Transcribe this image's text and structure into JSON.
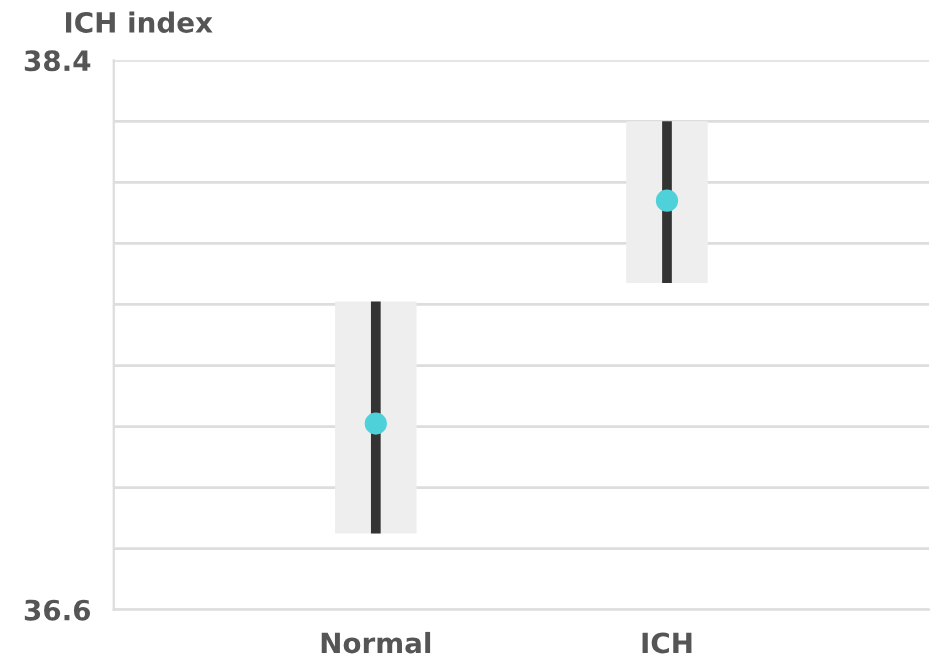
{
  "chart_data": {
    "type": "scatter",
    "ylabel": "ICH index",
    "categories": [
      "Normal",
      "ICH"
    ],
    "series": [
      {
        "type": "bar",
        "color": "#eeeeee",
        "base": [
          36.85,
          37.67
        ],
        "values": [
          0.76,
          0.53
        ]
      },
      {
        "color": "#4fd1d9",
        "values": [
          37.21,
          37.94
        ],
        "errors": [
          [
            36.85,
            37.61
          ],
          [
            37.67,
            38.2
          ]
        ]
      }
    ],
    "ylim": [
      36.6,
      38.4
    ],
    "yticks": [
      36.6,
      {
        "value": 36.8,
        "label": null
      },
      {
        "value": 37.0,
        "label": null
      },
      {
        "value": 37.2,
        "label": null
      },
      {
        "value": 37.4,
        "label": null
      },
      {
        "value": 37.6,
        "label": null
      },
      {
        "value": 37.8,
        "label": null
      },
      {
        "value": 38.0,
        "label": null
      },
      {
        "value": 38.2,
        "label": null
      },
      38.4
    ],
    "grid": "y",
    "marker": "circle"
  }
}
